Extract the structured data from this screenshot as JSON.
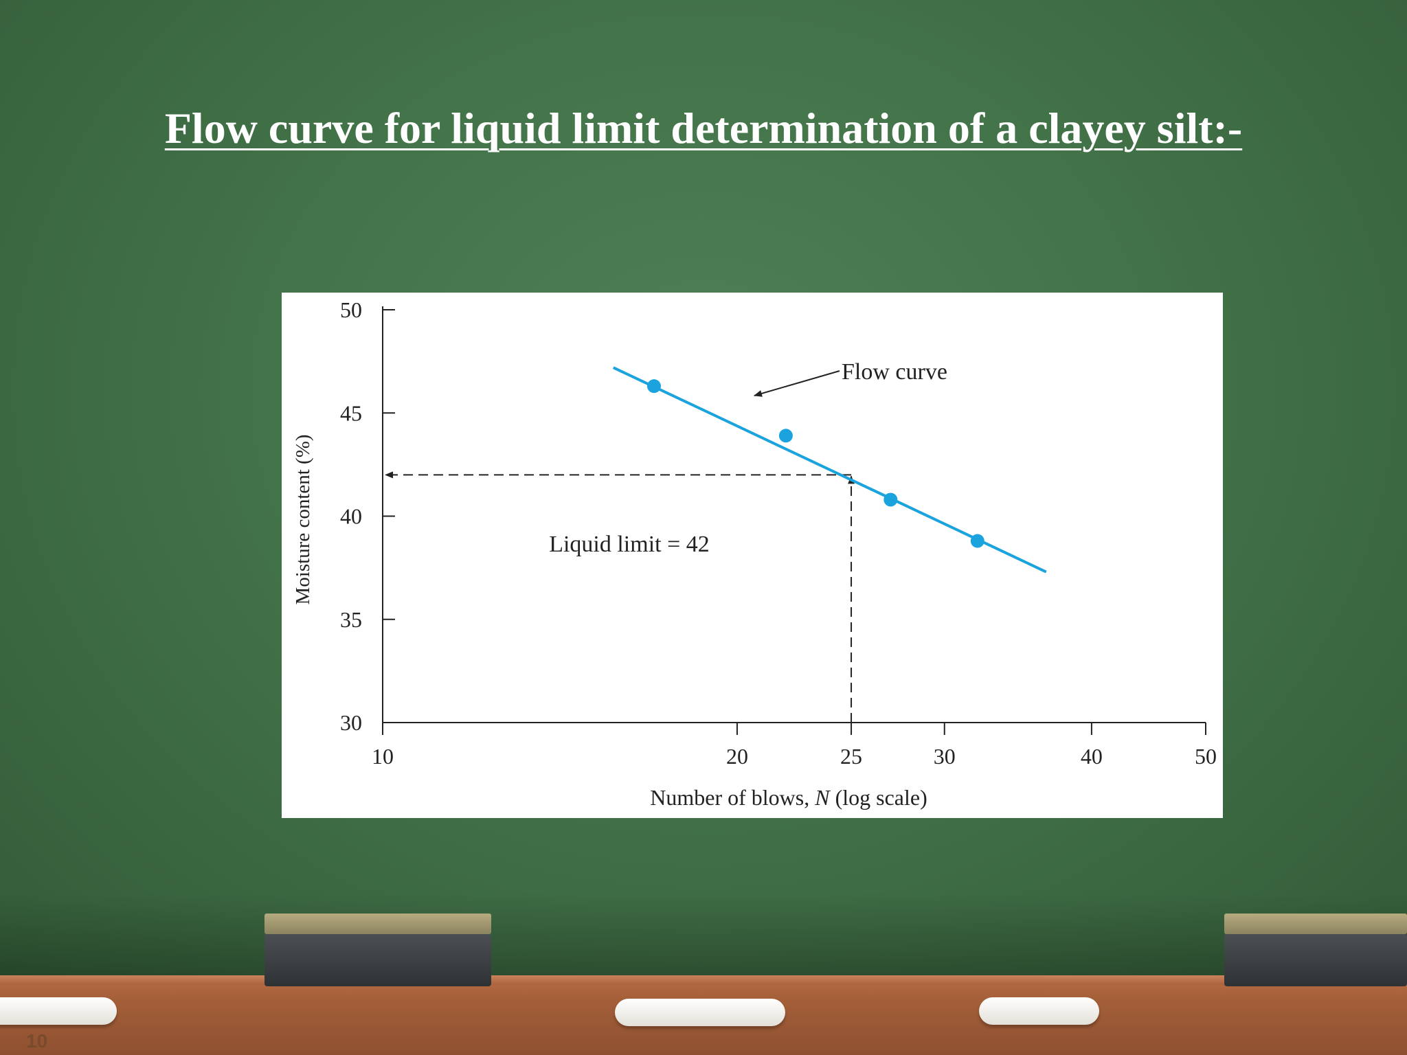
{
  "slide": {
    "title": "Flow curve for liquid limit determination of a clayey silt:-",
    "page_number": "10"
  },
  "colors": {
    "board": "#437349",
    "curve": "#1aa3dc",
    "points": "#1aa3dc",
    "axis": "#222222"
  },
  "chart_data": {
    "type": "scatter",
    "title": "",
    "xlabel_parts": [
      "Number of blows, ",
      "N",
      " (log scale)"
    ],
    "ylabel": "Moisture content (%)",
    "xscale": "log",
    "xlim": [
      10,
      50
    ],
    "ylim": [
      30,
      50
    ],
    "xticks": [
      10,
      20,
      25,
      30,
      40,
      50
    ],
    "yticks": [
      30,
      35,
      40,
      45,
      50
    ],
    "grid": false,
    "points": [
      {
        "x": 17,
        "y": 46.3
      },
      {
        "x": 22,
        "y": 43.9
      },
      {
        "x": 27,
        "y": 40.8
      },
      {
        "x": 32,
        "y": 38.8
      }
    ],
    "flow_curve": {
      "x": [
        15.7,
        36.6
      ],
      "y": [
        47.2,
        37.3
      ]
    },
    "liquid_limit": {
      "n": 25,
      "value": 42
    },
    "annotations": {
      "curve_label": "Flow curve",
      "liquid_limit_label": "Liquid limit = 42"
    }
  }
}
